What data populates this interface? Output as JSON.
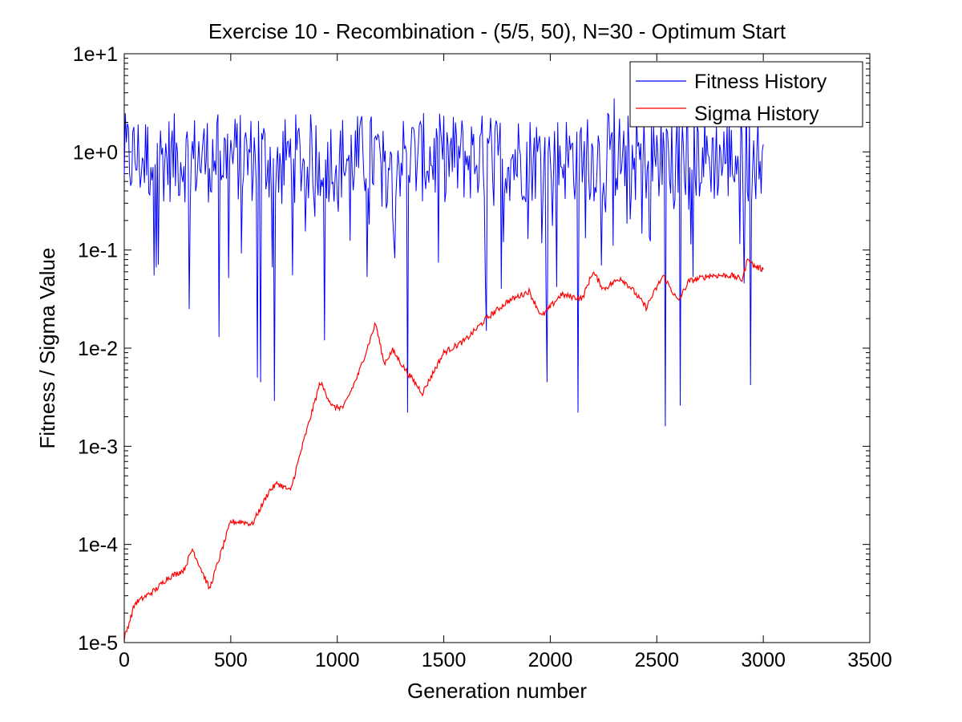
{
  "chart_data": {
    "type": "line",
    "title": "Exercise 10 - Recombination - (5/5, 50), N=30 - Optimum Start",
    "xlabel": "Generation number",
    "ylabel": "Fitness / Sigma Value",
    "xlim": [
      0,
      3500
    ],
    "ylim": [
      1e-05,
      10
    ],
    "yscale": "log",
    "grid": false,
    "legend_position": "top-right",
    "x_ticks": [
      0,
      500,
      1000,
      1500,
      2000,
      2500,
      3000,
      3500
    ],
    "x_tick_labels": [
      "0",
      "500",
      "1000",
      "1500",
      "2000",
      "2500",
      "3000",
      "3500"
    ],
    "y_ticks": [
      1e-05,
      0.0001,
      0.001,
      0.01,
      0.1,
      1,
      10
    ],
    "y_tick_labels": [
      "1e-5",
      "1e-4",
      "1e-3",
      "1e-2",
      "1e-1",
      "1e+0",
      "1e+1"
    ],
    "series": [
      {
        "name": "Fitness History",
        "color": "#0000ff",
        "style": "noisy",
        "x_range": [
          0,
          3000
        ],
        "typical_range": [
          0.3,
          2.5
        ],
        "notable_dips": [
          {
            "x": 140,
            "y": 0.055
          },
          {
            "x": 305,
            "y": 0.025
          },
          {
            "x": 445,
            "y": 0.013
          },
          {
            "x": 625,
            "y": 0.005
          },
          {
            "x": 640,
            "y": 0.0045
          },
          {
            "x": 705,
            "y": 0.0029
          },
          {
            "x": 940,
            "y": 0.012
          },
          {
            "x": 1330,
            "y": 0.0022
          },
          {
            "x": 1700,
            "y": 0.015
          },
          {
            "x": 1985,
            "y": 0.0045
          },
          {
            "x": 2130,
            "y": 0.0022
          },
          {
            "x": 2540,
            "y": 0.0016
          },
          {
            "x": 2610,
            "y": 0.0026
          },
          {
            "x": 2940,
            "y": 0.0042
          }
        ],
        "notable_peaks": [
          {
            "x": 1330,
            "y": 3.2
          },
          {
            "x": 2300,
            "y": 3.5
          },
          {
            "x": 2920,
            "y": 3.5
          }
        ]
      },
      {
        "name": "Sigma History",
        "color": "#ff0000",
        "style": "line",
        "x": [
          0,
          50,
          150,
          200,
          280,
          320,
          380,
          400,
          500,
          560,
          600,
          680,
          720,
          780,
          830,
          920,
          980,
          1030,
          1100,
          1180,
          1220,
          1260,
          1320,
          1400,
          1500,
          1600,
          1700,
          1800,
          1900,
          1960,
          2050,
          2150,
          2200,
          2250,
          2330,
          2380,
          2450,
          2530,
          2600,
          2650,
          2750,
          2850,
          2900,
          2930,
          2950,
          3000
        ],
        "y": [
          1.1e-05,
          2.5e-05,
          3.5e-05,
          4.5e-05,
          5.5e-05,
          9e-05,
          4.5e-05,
          3.5e-05,
          0.00017,
          0.00017,
          0.00016,
          0.00035,
          0.00042,
          0.00035,
          0.0009,
          0.0045,
          0.0025,
          0.0025,
          0.0055,
          0.018,
          0.007,
          0.0095,
          0.006,
          0.0035,
          0.009,
          0.012,
          0.02,
          0.03,
          0.038,
          0.021,
          0.035,
          0.032,
          0.06,
          0.04,
          0.052,
          0.041,
          0.026,
          0.055,
          0.03,
          0.048,
          0.055,
          0.055,
          0.05,
          0.085,
          0.07,
          0.063
        ]
      }
    ]
  }
}
